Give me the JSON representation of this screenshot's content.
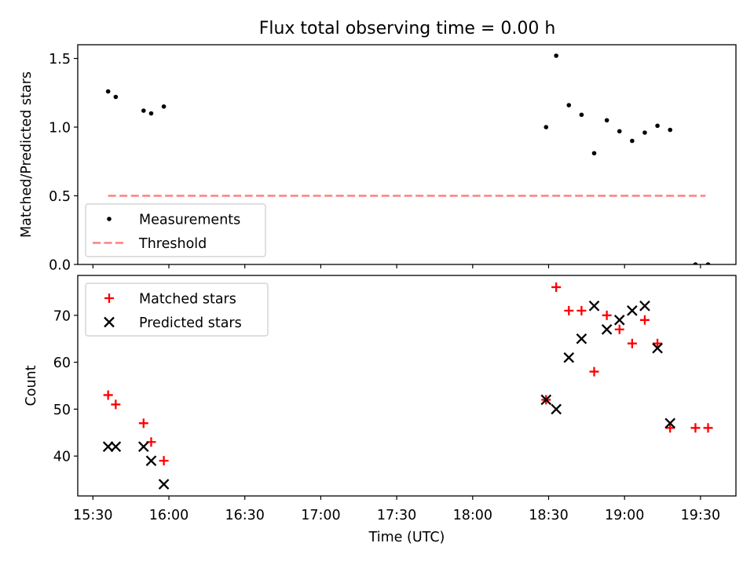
{
  "figure": {
    "title": "Flux total observing time = 0.00 h"
  },
  "chart_data": [
    {
      "type": "scatter",
      "ylabel": "Matched/Predicted stars",
      "xlabel": "",
      "xlim": [
        "15:24",
        "19:44"
      ],
      "ylim": [
        0,
        1.6
      ],
      "yticks": [
        0.0,
        0.5,
        1.0,
        1.5
      ],
      "ytick_labels": [
        "0.0",
        "0.5",
        "1.0",
        "1.5"
      ],
      "grid": false,
      "legend_position": "lower-left",
      "series": [
        {
          "name": "Measurements",
          "marker": "dot",
          "color": "#000000",
          "points": [
            {
              "x": "15:36",
              "y": 1.26
            },
            {
              "x": "15:39",
              "y": 1.22
            },
            {
              "x": "15:50",
              "y": 1.12
            },
            {
              "x": "15:53",
              "y": 1.1
            },
            {
              "x": "15:58",
              "y": 1.15
            },
            {
              "x": "18:29",
              "y": 1.0
            },
            {
              "x": "18:33",
              "y": 1.52
            },
            {
              "x": "18:38",
              "y": 1.16
            },
            {
              "x": "18:43",
              "y": 1.09
            },
            {
              "x": "18:48",
              "y": 0.81
            },
            {
              "x": "18:53",
              "y": 1.05
            },
            {
              "x": "18:58",
              "y": 0.97
            },
            {
              "x": "19:03",
              "y": 0.9
            },
            {
              "x": "19:08",
              "y": 0.96
            },
            {
              "x": "19:13",
              "y": 1.01
            },
            {
              "x": "19:18",
              "y": 0.98
            },
            {
              "x": "19:28",
              "y": 0.0
            },
            {
              "x": "19:33",
              "y": 0.0
            }
          ]
        },
        {
          "name": "Threshold",
          "marker": "dashed-line",
          "color": "#ff7f7f",
          "points": [
            {
              "x": "15:36",
              "y": 0.5
            },
            {
              "x": "19:32",
              "y": 0.5
            }
          ]
        }
      ]
    },
    {
      "type": "scatter",
      "ylabel": "Count",
      "xlabel": "Time (UTC)",
      "xlim": [
        "15:24",
        "19:44"
      ],
      "ylim": [
        31.5,
        78.5
      ],
      "yticks": [
        40,
        50,
        60,
        70
      ],
      "ytick_labels": [
        "40",
        "50",
        "60",
        "70"
      ],
      "xticks": [
        "15:30",
        "16:00",
        "16:30",
        "17:00",
        "17:30",
        "18:00",
        "18:30",
        "19:00",
        "19:30"
      ],
      "xtick_labels": [
        "15:30",
        "16:00",
        "16:30",
        "17:00",
        "17:30",
        "18:00",
        "18:30",
        "19:00",
        "19:30"
      ],
      "grid": false,
      "legend_position": "top-left",
      "series": [
        {
          "name": "Matched stars",
          "marker": "plus",
          "color": "#ff0000",
          "points": [
            {
              "x": "15:36",
              "y": 53
            },
            {
              "x": "15:39",
              "y": 51
            },
            {
              "x": "15:50",
              "y": 47
            },
            {
              "x": "15:53",
              "y": 43
            },
            {
              "x": "15:58",
              "y": 39
            },
            {
              "x": "18:29",
              "y": 52
            },
            {
              "x": "18:33",
              "y": 76
            },
            {
              "x": "18:38",
              "y": 71
            },
            {
              "x": "18:43",
              "y": 71
            },
            {
              "x": "18:48",
              "y": 58
            },
            {
              "x": "18:53",
              "y": 70
            },
            {
              "x": "18:58",
              "y": 67
            },
            {
              "x": "19:03",
              "y": 64
            },
            {
              "x": "19:08",
              "y": 69
            },
            {
              "x": "19:13",
              "y": 64
            },
            {
              "x": "19:18",
              "y": 46
            },
            {
              "x": "19:28",
              "y": 46
            },
            {
              "x": "19:33",
              "y": 46
            }
          ]
        },
        {
          "name": "Predicted stars",
          "marker": "x",
          "color": "#000000",
          "points": [
            {
              "x": "15:36",
              "y": 42
            },
            {
              "x": "15:39",
              "y": 42
            },
            {
              "x": "15:50",
              "y": 42
            },
            {
              "x": "15:53",
              "y": 39
            },
            {
              "x": "15:58",
              "y": 34
            },
            {
              "x": "18:29",
              "y": 52
            },
            {
              "x": "18:33",
              "y": 50
            },
            {
              "x": "18:38",
              "y": 61
            },
            {
              "x": "18:43",
              "y": 65
            },
            {
              "x": "18:48",
              "y": 72
            },
            {
              "x": "18:53",
              "y": 67
            },
            {
              "x": "18:58",
              "y": 69
            },
            {
              "x": "19:03",
              "y": 71
            },
            {
              "x": "19:08",
              "y": 72
            },
            {
              "x": "19:13",
              "y": 63
            },
            {
              "x": "19:18",
              "y": 47
            }
          ]
        }
      ]
    }
  ]
}
